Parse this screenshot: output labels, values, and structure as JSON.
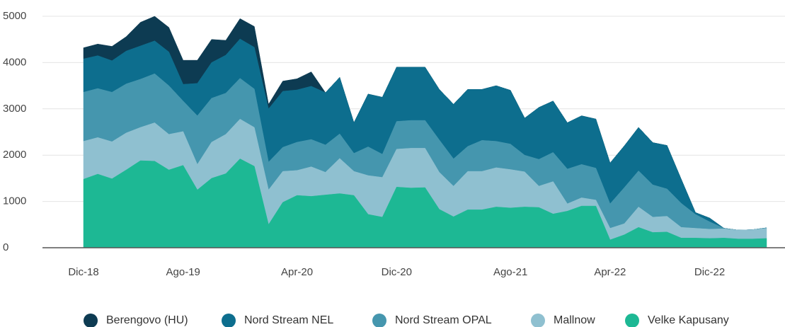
{
  "chart_data": {
    "type": "stacked-area",
    "categories": [
      "Dic-18",
      null,
      null,
      null,
      null,
      null,
      null,
      "Ago-19",
      null,
      null,
      null,
      null,
      null,
      null,
      null,
      "Apr-20",
      null,
      null,
      null,
      null,
      null,
      null,
      "Dic-20",
      null,
      null,
      null,
      null,
      null,
      null,
      null,
      "Ago-21",
      null,
      null,
      null,
      null,
      null,
      null,
      "Apr-22",
      null,
      null,
      null,
      null,
      null,
      null,
      "Dic-22",
      null,
      null,
      null,
      null
    ],
    "series": [
      {
        "name": "Berengovo (HU)",
        "color": "#0d3b52",
        "values": [
          240,
          250,
          310,
          310,
          510,
          530,
          530,
          520,
          500,
          500,
          320,
          440,
          450,
          100,
          220,
          240,
          310,
          0,
          0,
          0,
          0,
          0,
          0,
          0,
          0,
          0,
          0,
          0,
          0,
          0,
          0,
          0,
          0,
          0,
          0,
          0,
          0,
          0,
          0,
          0,
          0,
          0,
          0,
          0,
          0,
          0,
          0,
          0,
          0
        ]
      },
      {
        "name": "Nord Stream NEL",
        "color": "#0d6e8e",
        "values": [
          720,
          710,
          680,
          710,
          720,
          710,
          730,
          360,
          700,
          770,
          820,
          850,
          900,
          1150,
          1210,
          1130,
          1150,
          1130,
          1220,
          660,
          1140,
          1230,
          1170,
          1150,
          1150,
          1090,
          1180,
          1230,
          1100,
          1200,
          1160,
          800,
          1120,
          1110,
          1000,
          1050,
          1060,
          880,
          900,
          940,
          910,
          940,
          520,
          40,
          80,
          0,
          0,
          0,
          0
        ]
      },
      {
        "name": "Nord Stream OPAL",
        "color": "#4596ae",
        "values": [
          1060,
          1060,
          1070,
          1060,
          1040,
          1060,
          1050,
          660,
          1050,
          950,
          890,
          880,
          830,
          600,
          520,
          610,
          590,
          590,
          530,
          390,
          620,
          500,
          600,
          600,
          600,
          700,
          590,
          540,
          670,
          570,
          550,
          360,
          580,
          630,
          750,
          720,
          690,
          530,
          780,
          780,
          700,
          590,
          520,
          300,
          160,
          10,
          0,
          0,
          10
        ]
      },
      {
        "name": "Mallnow",
        "color": "#8fc0d0",
        "values": [
          820,
          790,
          800,
          800,
          720,
          830,
          770,
          730,
          550,
          780,
          850,
          860,
          840,
          750,
          670,
          540,
          640,
          490,
          760,
          520,
          840,
          860,
          820,
          860,
          850,
          800,
          660,
          830,
          830,
          850,
          830,
          760,
          460,
          700,
          160,
          180,
          130,
          250,
          240,
          440,
          330,
          340,
          230,
          210,
          200,
          200,
          190,
          200,
          220
        ]
      },
      {
        "name": "Velke Kapusany",
        "color": "#1db894",
        "values": [
          1480,
          1590,
          1490,
          1680,
          1880,
          1870,
          1680,
          1780,
          1250,
          1500,
          1600,
          1920,
          1760,
          500,
          980,
          1130,
          1110,
          1140,
          1170,
          1130,
          720,
          660,
          1310,
          1290,
          1300,
          830,
          670,
          820,
          820,
          880,
          860,
          880,
          870,
          730,
          790,
          900,
          900,
          170,
          280,
          440,
          330,
          340,
          210,
          210,
          200,
          210,
          190,
          190,
          200
        ]
      }
    ],
    "ylim": [
      0,
      5000
    ],
    "yticks": [
      0,
      1000,
      2000,
      3000,
      4000,
      5000
    ],
    "grid": true
  }
}
